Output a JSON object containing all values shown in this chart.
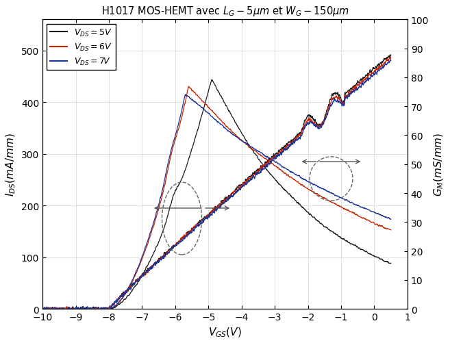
{
  "title": "H1017 MOS-HEMT avec $L_G - 5\\mu m$ et $W_G - 150\\mu m$",
  "xlabel": "$V_{GS}(V)$",
  "ylabel_left": "$I_{DS}(mA/mm)$",
  "ylabel_right": "$G_M(mS/mm)$",
  "xlim": [
    -10,
    1
  ],
  "ylim_left": [
    0,
    560
  ],
  "ylim_right": [
    0,
    100
  ],
  "xticks": [
    -10,
    -9,
    -8,
    -7,
    -6,
    -5,
    -4,
    -3,
    -2,
    -1,
    0,
    1
  ],
  "yticks_left": [
    0,
    100,
    200,
    300,
    400,
    500
  ],
  "yticks_right": [
    0,
    10,
    20,
    30,
    40,
    50,
    60,
    70,
    80,
    90,
    100
  ],
  "legend_labels": [
    "$V_{DS} = 5V$",
    "$V_{DS} = 6V$",
    "$V_{DS} = 7V$"
  ],
  "line_colors": [
    "#1a1a1a",
    "#cc2200",
    "#1a3399"
  ],
  "background_color": "#ffffff",
  "grid_color": "#cccccc",
  "scale": 5.6
}
